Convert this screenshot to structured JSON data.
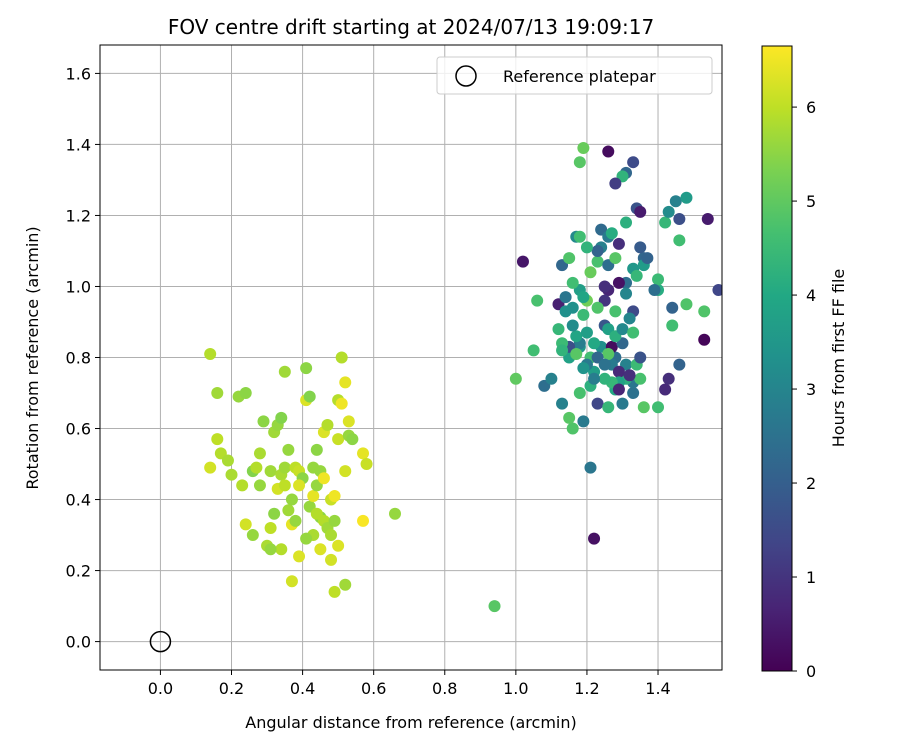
{
  "chart_data": {
    "type": "scatter",
    "title": "FOV centre drift starting at 2024/07/13 19:09:17",
    "xlabel": "Angular distance from reference (arcmin)",
    "ylabel": "Rotation from reference (arcmin)",
    "xlim": [
      -0.17,
      1.58
    ],
    "ylim": [
      -0.08,
      1.68
    ],
    "xticks": [
      "0.0",
      "0.2",
      "0.4",
      "0.6",
      "0.8",
      "1.0",
      "1.2",
      "1.4"
    ],
    "yticks": [
      "0.0",
      "0.2",
      "0.4",
      "0.6",
      "0.8",
      "1.0",
      "1.2",
      "1.4",
      "1.6"
    ],
    "grid": true,
    "legend": {
      "placement": "top-right",
      "entries": [
        "Reference platepar"
      ]
    },
    "reference_point": {
      "x": 0.0,
      "y": 0.0
    },
    "colorbar": {
      "label": "Hours from first FF file",
      "range": [
        0,
        6.65
      ],
      "ticks": [
        "0",
        "1",
        "2",
        "3",
        "4",
        "5",
        "6"
      ],
      "colormap": "viridis"
    },
    "points": [
      [
        1.12,
        0.95,
        0.6
      ],
      [
        1.02,
        1.07,
        0.4
      ],
      [
        1.08,
        0.72,
        2.4
      ],
      [
        1.13,
        1.06,
        2.2
      ],
      [
        1.14,
        0.97,
        2.6
      ],
      [
        1.16,
        0.94,
        3.3
      ],
      [
        1.18,
        0.83,
        3.5
      ],
      [
        1.12,
        0.88,
        4.4
      ],
      [
        1.15,
        0.8,
        3.8
      ],
      [
        1.1,
        0.74,
        2.9
      ],
      [
        1.06,
        0.96,
        4.7
      ],
      [
        1.05,
        0.82,
        4.6
      ],
      [
        1.0,
        0.74,
        5.0
      ],
      [
        1.13,
        0.67,
        2.9
      ],
      [
        1.16,
        0.6,
        4.8
      ],
      [
        1.19,
        0.62,
        2.7
      ],
      [
        1.21,
        0.49,
        2.6
      ],
      [
        1.22,
        0.29,
        0.3
      ],
      [
        1.15,
        0.63,
        4.9
      ],
      [
        1.18,
        0.7,
        4.7
      ],
      [
        1.21,
        0.72,
        4.2
      ],
      [
        1.23,
        0.67,
        1.4
      ],
      [
        1.26,
        0.66,
        4.4
      ],
      [
        1.3,
        0.67,
        2.7
      ],
      [
        1.33,
        0.7,
        2.5
      ],
      [
        1.36,
        0.66,
        4.9
      ],
      [
        1.4,
        0.66,
        4.6
      ],
      [
        1.42,
        0.71,
        0.8
      ],
      [
        1.43,
        0.74,
        0.9
      ],
      [
        1.46,
        0.78,
        2.1
      ],
      [
        1.53,
        0.85,
        0.1
      ],
      [
        1.44,
        0.89,
        4.6
      ],
      [
        1.44,
        0.94,
        2.1
      ],
      [
        1.48,
        0.95,
        4.8
      ],
      [
        1.53,
        0.93,
        4.8
      ],
      [
        1.57,
        0.99,
        1.4
      ],
      [
        1.4,
        0.99,
        4.1
      ],
      [
        1.4,
        1.02,
        4.5
      ],
      [
        1.36,
        1.08,
        2.2
      ],
      [
        1.35,
        1.11,
        1.9
      ],
      [
        1.33,
        0.93,
        1.5
      ],
      [
        1.31,
        1.01,
        2.4
      ],
      [
        1.29,
        1.01,
        0.3
      ],
      [
        1.26,
        0.99,
        0.7
      ],
      [
        1.25,
        0.96,
        1.0
      ],
      [
        1.23,
        0.94,
        4.8
      ],
      [
        1.19,
        0.92,
        4.5
      ],
      [
        1.2,
        0.96,
        5.2
      ],
      [
        1.18,
        0.99,
        3.7
      ],
      [
        1.16,
        1.01,
        4.6
      ],
      [
        1.15,
        1.08,
        4.8
      ],
      [
        1.17,
        1.14,
        3.1
      ],
      [
        1.18,
        1.14,
        4.6
      ],
      [
        1.21,
        1.04,
        5.1
      ],
      [
        1.23,
        1.07,
        4.7
      ],
      [
        1.24,
        1.16,
        2.3
      ],
      [
        1.24,
        1.11,
        2.9
      ],
      [
        1.26,
        1.14,
        2.7
      ],
      [
        1.26,
        1.06,
        2.4
      ],
      [
        1.27,
        1.15,
        4.1
      ],
      [
        1.28,
        1.08,
        4.9
      ],
      [
        1.29,
        1.12,
        0.9
      ],
      [
        1.31,
        1.18,
        4.2
      ],
      [
        1.33,
        1.05,
        3.5
      ],
      [
        1.34,
        1.22,
        1.7
      ],
      [
        1.35,
        1.21,
        0.5
      ],
      [
        1.36,
        1.06,
        3.6
      ],
      [
        1.37,
        1.08,
        2.1
      ],
      [
        1.39,
        0.99,
        2.4
      ],
      [
        1.42,
        1.18,
        4.4
      ],
      [
        1.43,
        1.21,
        3.2
      ],
      [
        1.45,
        1.24,
        2.9
      ],
      [
        1.46,
        1.13,
        4.6
      ],
      [
        1.46,
        1.19,
        1.6
      ],
      [
        1.48,
        1.25,
        3.6
      ],
      [
        1.54,
        1.19,
        0.5
      ],
      [
        1.31,
        1.32,
        2.2
      ],
      [
        1.3,
        1.31,
        4.3
      ],
      [
        1.28,
        1.29,
        1.2
      ],
      [
        1.26,
        1.38,
        0.2
      ],
      [
        1.33,
        1.35,
        1.5
      ],
      [
        1.19,
        1.39,
        5.1
      ],
      [
        1.18,
        1.35,
        4.9
      ],
      [
        1.28,
        0.8,
        2.4
      ],
      [
        1.25,
        0.89,
        1.8
      ],
      [
        1.24,
        0.83,
        3.3
      ],
      [
        1.27,
        0.83,
        0.2
      ],
      [
        1.27,
        0.78,
        2.7
      ],
      [
        1.3,
        0.84,
        2.2
      ],
      [
        1.31,
        0.78,
        2.9
      ],
      [
        1.33,
        0.73,
        2.6
      ],
      [
        1.34,
        0.78,
        4.5
      ],
      [
        1.35,
        0.74,
        4.7
      ],
      [
        1.31,
        0.74,
        4.2
      ],
      [
        1.29,
        0.76,
        0.8
      ],
      [
        1.29,
        0.73,
        3.8
      ],
      [
        1.28,
        0.71,
        4.0
      ],
      [
        1.27,
        0.73,
        4.4
      ],
      [
        1.26,
        0.81,
        4.9
      ],
      [
        1.25,
        0.74,
        4.3
      ],
      [
        1.22,
        0.76,
        3.7
      ],
      [
        1.21,
        0.8,
        4.6
      ],
      [
        1.2,
        0.78,
        2.7
      ],
      [
        1.19,
        0.77,
        3.4
      ],
      [
        1.18,
        0.84,
        2.8
      ],
      [
        1.17,
        0.86,
        3.9
      ],
      [
        1.16,
        0.89,
        3.2
      ],
      [
        1.15,
        0.83,
        1.6
      ],
      [
        1.13,
        0.84,
        4.5
      ],
      [
        1.13,
        0.82,
        4.3
      ],
      [
        1.14,
        0.93,
        3.3
      ],
      [
        1.2,
        0.87,
        3.7
      ],
      [
        1.22,
        0.84,
        4.0
      ],
      [
        1.23,
        0.8,
        2.2
      ],
      [
        1.26,
        0.88,
        3.8
      ],
      [
        1.28,
        0.86,
        4.2
      ],
      [
        1.3,
        0.88,
        3.1
      ],
      [
        1.32,
        0.91,
        3.0
      ],
      [
        1.33,
        0.87,
        4.6
      ],
      [
        1.35,
        0.8,
        1.7
      ],
      [
        1.29,
        0.71,
        0.7
      ],
      [
        1.32,
        0.75,
        0.9
      ],
      [
        1.28,
        0.93,
        4.7
      ],
      [
        1.31,
        0.98,
        3.0
      ],
      [
        1.34,
        1.03,
        4.4
      ],
      [
        1.25,
        1.0,
        0.9
      ],
      [
        1.23,
        1.1,
        2.1
      ],
      [
        1.2,
        1.11,
        4.3
      ],
      [
        1.19,
        0.97,
        3.9
      ],
      [
        1.17,
        0.81,
        4.9
      ],
      [
        1.25,
        0.78,
        2.5
      ],
      [
        1.22,
        0.74,
        2.8
      ],
      [
        0.94,
        0.1,
        4.9
      ],
      [
        0.14,
        0.81,
        5.9
      ],
      [
        0.16,
        0.7,
        5.7
      ],
      [
        0.16,
        0.57,
        6.0
      ],
      [
        0.17,
        0.53,
        5.9
      ],
      [
        0.19,
        0.51,
        5.8
      ],
      [
        0.14,
        0.49,
        6.2
      ],
      [
        0.2,
        0.47,
        5.8
      ],
      [
        0.22,
        0.69,
        5.6
      ],
      [
        0.24,
        0.7,
        5.5
      ],
      [
        0.23,
        0.44,
        5.9
      ],
      [
        0.24,
        0.33,
        6.2
      ],
      [
        0.26,
        0.3,
        5.6
      ],
      [
        0.26,
        0.48,
        5.4
      ],
      [
        0.28,
        0.44,
        5.6
      ],
      [
        0.28,
        0.53,
        5.8
      ],
      [
        0.29,
        0.62,
        5.5
      ],
      [
        0.31,
        0.48,
        5.7
      ],
      [
        0.3,
        0.27,
        5.8
      ],
      [
        0.31,
        0.32,
        6.0
      ],
      [
        0.32,
        0.36,
        5.5
      ],
      [
        0.32,
        0.59,
        5.7
      ],
      [
        0.33,
        0.61,
        5.6
      ],
      [
        0.33,
        0.43,
        6.2
      ],
      [
        0.34,
        0.63,
        5.4
      ],
      [
        0.34,
        0.26,
        5.9
      ],
      [
        0.34,
        0.47,
        5.8
      ],
      [
        0.35,
        0.44,
        6.0
      ],
      [
        0.35,
        0.49,
        5.7
      ],
      [
        0.36,
        0.54,
        5.6
      ],
      [
        0.36,
        0.37,
        5.7
      ],
      [
        0.37,
        0.33,
        6.4
      ],
      [
        0.37,
        0.4,
        5.6
      ],
      [
        0.37,
        0.17,
        6.2
      ],
      [
        0.38,
        0.49,
        6.0
      ],
      [
        0.38,
        0.34,
        5.6
      ],
      [
        0.39,
        0.48,
        6.1
      ],
      [
        0.39,
        0.24,
        6.3
      ],
      [
        0.4,
        0.46,
        5.5
      ],
      [
        0.41,
        0.77,
        5.5
      ],
      [
        0.41,
        0.68,
        6.3
      ],
      [
        0.42,
        0.69,
        5.4
      ],
      [
        0.42,
        0.38,
        5.6
      ],
      [
        0.43,
        0.49,
        5.6
      ],
      [
        0.43,
        0.41,
        6.4
      ],
      [
        0.43,
        0.3,
        5.8
      ],
      [
        0.44,
        0.54,
        5.5
      ],
      [
        0.44,
        0.44,
        5.6
      ],
      [
        0.45,
        0.35,
        5.5
      ],
      [
        0.45,
        0.48,
        5.6
      ],
      [
        0.45,
        0.26,
        6.3
      ],
      [
        0.46,
        0.59,
        6.3
      ],
      [
        0.46,
        0.34,
        5.9
      ],
      [
        0.46,
        0.46,
        6.5
      ],
      [
        0.47,
        0.61,
        5.9
      ],
      [
        0.47,
        0.32,
        5.7
      ],
      [
        0.48,
        0.4,
        6.1
      ],
      [
        0.48,
        0.3,
        5.8
      ],
      [
        0.48,
        0.23,
        6.2
      ],
      [
        0.49,
        0.14,
        6.0
      ],
      [
        0.49,
        0.41,
        6.5
      ],
      [
        0.49,
        0.34,
        5.6
      ],
      [
        0.5,
        0.68,
        5.9
      ],
      [
        0.5,
        0.57,
        6.1
      ],
      [
        0.5,
        0.27,
        6.3
      ],
      [
        0.51,
        0.67,
        6.5
      ],
      [
        0.51,
        0.8,
        5.9
      ],
      [
        0.52,
        0.73,
        6.4
      ],
      [
        0.52,
        0.48,
        6.2
      ],
      [
        0.52,
        0.16,
        5.7
      ],
      [
        0.53,
        0.62,
        6.3
      ],
      [
        0.53,
        0.58,
        5.6
      ],
      [
        0.54,
        0.57,
        5.5
      ],
      [
        0.57,
        0.53,
        6.4
      ],
      [
        0.57,
        0.34,
        6.6
      ],
      [
        0.58,
        0.5,
        6.1
      ],
      [
        0.66,
        0.36,
        5.6
      ],
      [
        0.35,
        0.76,
        5.7
      ],
      [
        0.31,
        0.26,
        5.6
      ],
      [
        0.41,
        0.29,
        5.6
      ],
      [
        0.27,
        0.49,
        5.9
      ],
      [
        0.44,
        0.36,
        5.9
      ],
      [
        0.39,
        0.44,
        6.3
      ]
    ]
  }
}
